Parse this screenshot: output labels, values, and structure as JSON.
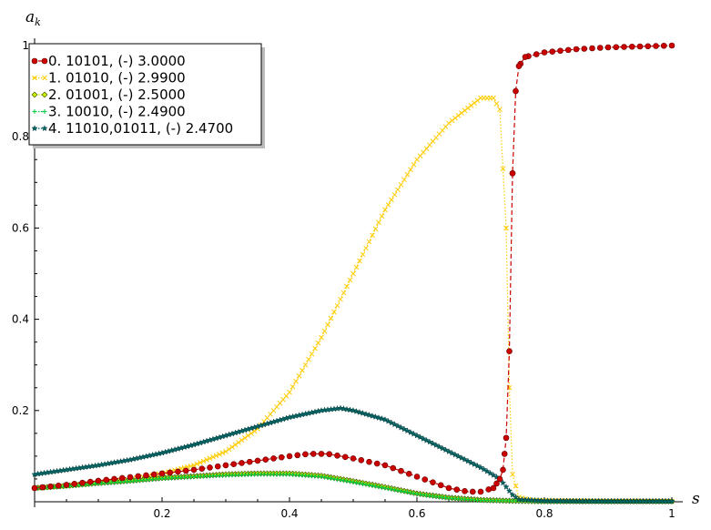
{
  "chart_data": {
    "type": "line",
    "title": "",
    "xlabel": "s",
    "ylabel": "a_k",
    "xlim": [
      0,
      1
    ],
    "ylim": [
      0,
      1
    ],
    "xticks": [
      0.2,
      0.4,
      0.6,
      0.8,
      1
    ],
    "xtick_labels": [
      "0.2",
      "0.4",
      "0.6",
      "0.8",
      "1"
    ],
    "yticks": [
      0.2,
      0.4,
      0.6,
      0.8,
      1
    ],
    "ytick_labels": [
      "0.2",
      "0.4",
      "0.6",
      "0.8",
      "1"
    ],
    "grid": false,
    "legend_position": "top-left",
    "series": [
      {
        "name": "0. 10101, (-) 3.0000",
        "color": "#cc0000",
        "marker": "circle",
        "line": "dashed",
        "x": [
          0.0,
          0.05,
          0.1,
          0.15,
          0.2,
          0.25,
          0.3,
          0.35,
          0.4,
          0.43,
          0.46,
          0.5,
          0.55,
          0.6,
          0.65,
          0.68,
          0.7,
          0.72,
          0.73,
          0.735,
          0.74,
          0.745,
          0.75,
          0.755,
          0.76,
          0.77,
          0.8,
          0.85,
          0.9,
          0.95,
          1.0
        ],
        "y": [
          0.03,
          0.037,
          0.046,
          0.054,
          0.062,
          0.07,
          0.08,
          0.09,
          0.1,
          0.105,
          0.105,
          0.095,
          0.08,
          0.055,
          0.03,
          0.022,
          0.022,
          0.03,
          0.05,
          0.07,
          0.14,
          0.33,
          0.72,
          0.9,
          0.955,
          0.975,
          0.985,
          0.992,
          0.996,
          0.998,
          1.0
        ]
      },
      {
        "name": "1. 01010, (-) 2.9900",
        "color": "#ffcc00",
        "marker": "x",
        "line": "dotted",
        "x": [
          0.0,
          0.05,
          0.1,
          0.15,
          0.2,
          0.25,
          0.3,
          0.35,
          0.4,
          0.45,
          0.5,
          0.55,
          0.6,
          0.65,
          0.7,
          0.72,
          0.73,
          0.74,
          0.745,
          0.75,
          0.76,
          0.78,
          0.8,
          0.9,
          1.0
        ],
        "y": [
          0.03,
          0.035,
          0.042,
          0.05,
          0.062,
          0.08,
          0.11,
          0.16,
          0.24,
          0.36,
          0.5,
          0.64,
          0.75,
          0.83,
          0.885,
          0.885,
          0.86,
          0.6,
          0.25,
          0.06,
          0.01,
          0.003,
          0.002,
          0.001,
          0.001
        ]
      },
      {
        "name": "2. 01001, (-) 2.5000",
        "color": "#ccee00",
        "marker": "diamond",
        "line": "dotted",
        "x": [
          0.0,
          0.05,
          0.1,
          0.15,
          0.2,
          0.25,
          0.3,
          0.35,
          0.4,
          0.45,
          0.5,
          0.55,
          0.6,
          0.65,
          0.7,
          0.75,
          0.8,
          0.9,
          1.0
        ],
        "y": [
          0.03,
          0.035,
          0.041,
          0.046,
          0.052,
          0.056,
          0.06,
          0.062,
          0.062,
          0.057,
          0.045,
          0.032,
          0.018,
          0.009,
          0.004,
          0.002,
          0.001,
          0.001,
          0.001
        ]
      },
      {
        "name": "3. 10010, (-) 2.4900",
        "color": "#00cc44",
        "marker": "plus",
        "line": "dotted",
        "x": [
          0.0,
          0.05,
          0.1,
          0.15,
          0.2,
          0.25,
          0.3,
          0.35,
          0.4,
          0.45,
          0.5,
          0.55,
          0.6,
          0.65,
          0.7,
          0.75,
          0.8,
          0.9,
          1.0
        ],
        "y": [
          0.029,
          0.034,
          0.04,
          0.045,
          0.051,
          0.055,
          0.058,
          0.06,
          0.06,
          0.055,
          0.043,
          0.03,
          0.017,
          0.008,
          0.003,
          0.002,
          0.001,
          0.001,
          0.001
        ]
      },
      {
        "name": "4. 11010,01011, (-) 2.4700",
        "color": "#006666",
        "marker": "star",
        "line": "dotted",
        "x": [
          0.0,
          0.05,
          0.1,
          0.15,
          0.2,
          0.25,
          0.3,
          0.35,
          0.4,
          0.45,
          0.48,
          0.5,
          0.55,
          0.6,
          0.65,
          0.7,
          0.73,
          0.75,
          0.76,
          0.8,
          0.9,
          1.0
        ],
        "y": [
          0.06,
          0.07,
          0.08,
          0.092,
          0.107,
          0.125,
          0.145,
          0.165,
          0.185,
          0.2,
          0.205,
          0.2,
          0.18,
          0.145,
          0.11,
          0.075,
          0.05,
          0.015,
          0.005,
          0.002,
          0.001,
          0.001
        ]
      }
    ]
  }
}
